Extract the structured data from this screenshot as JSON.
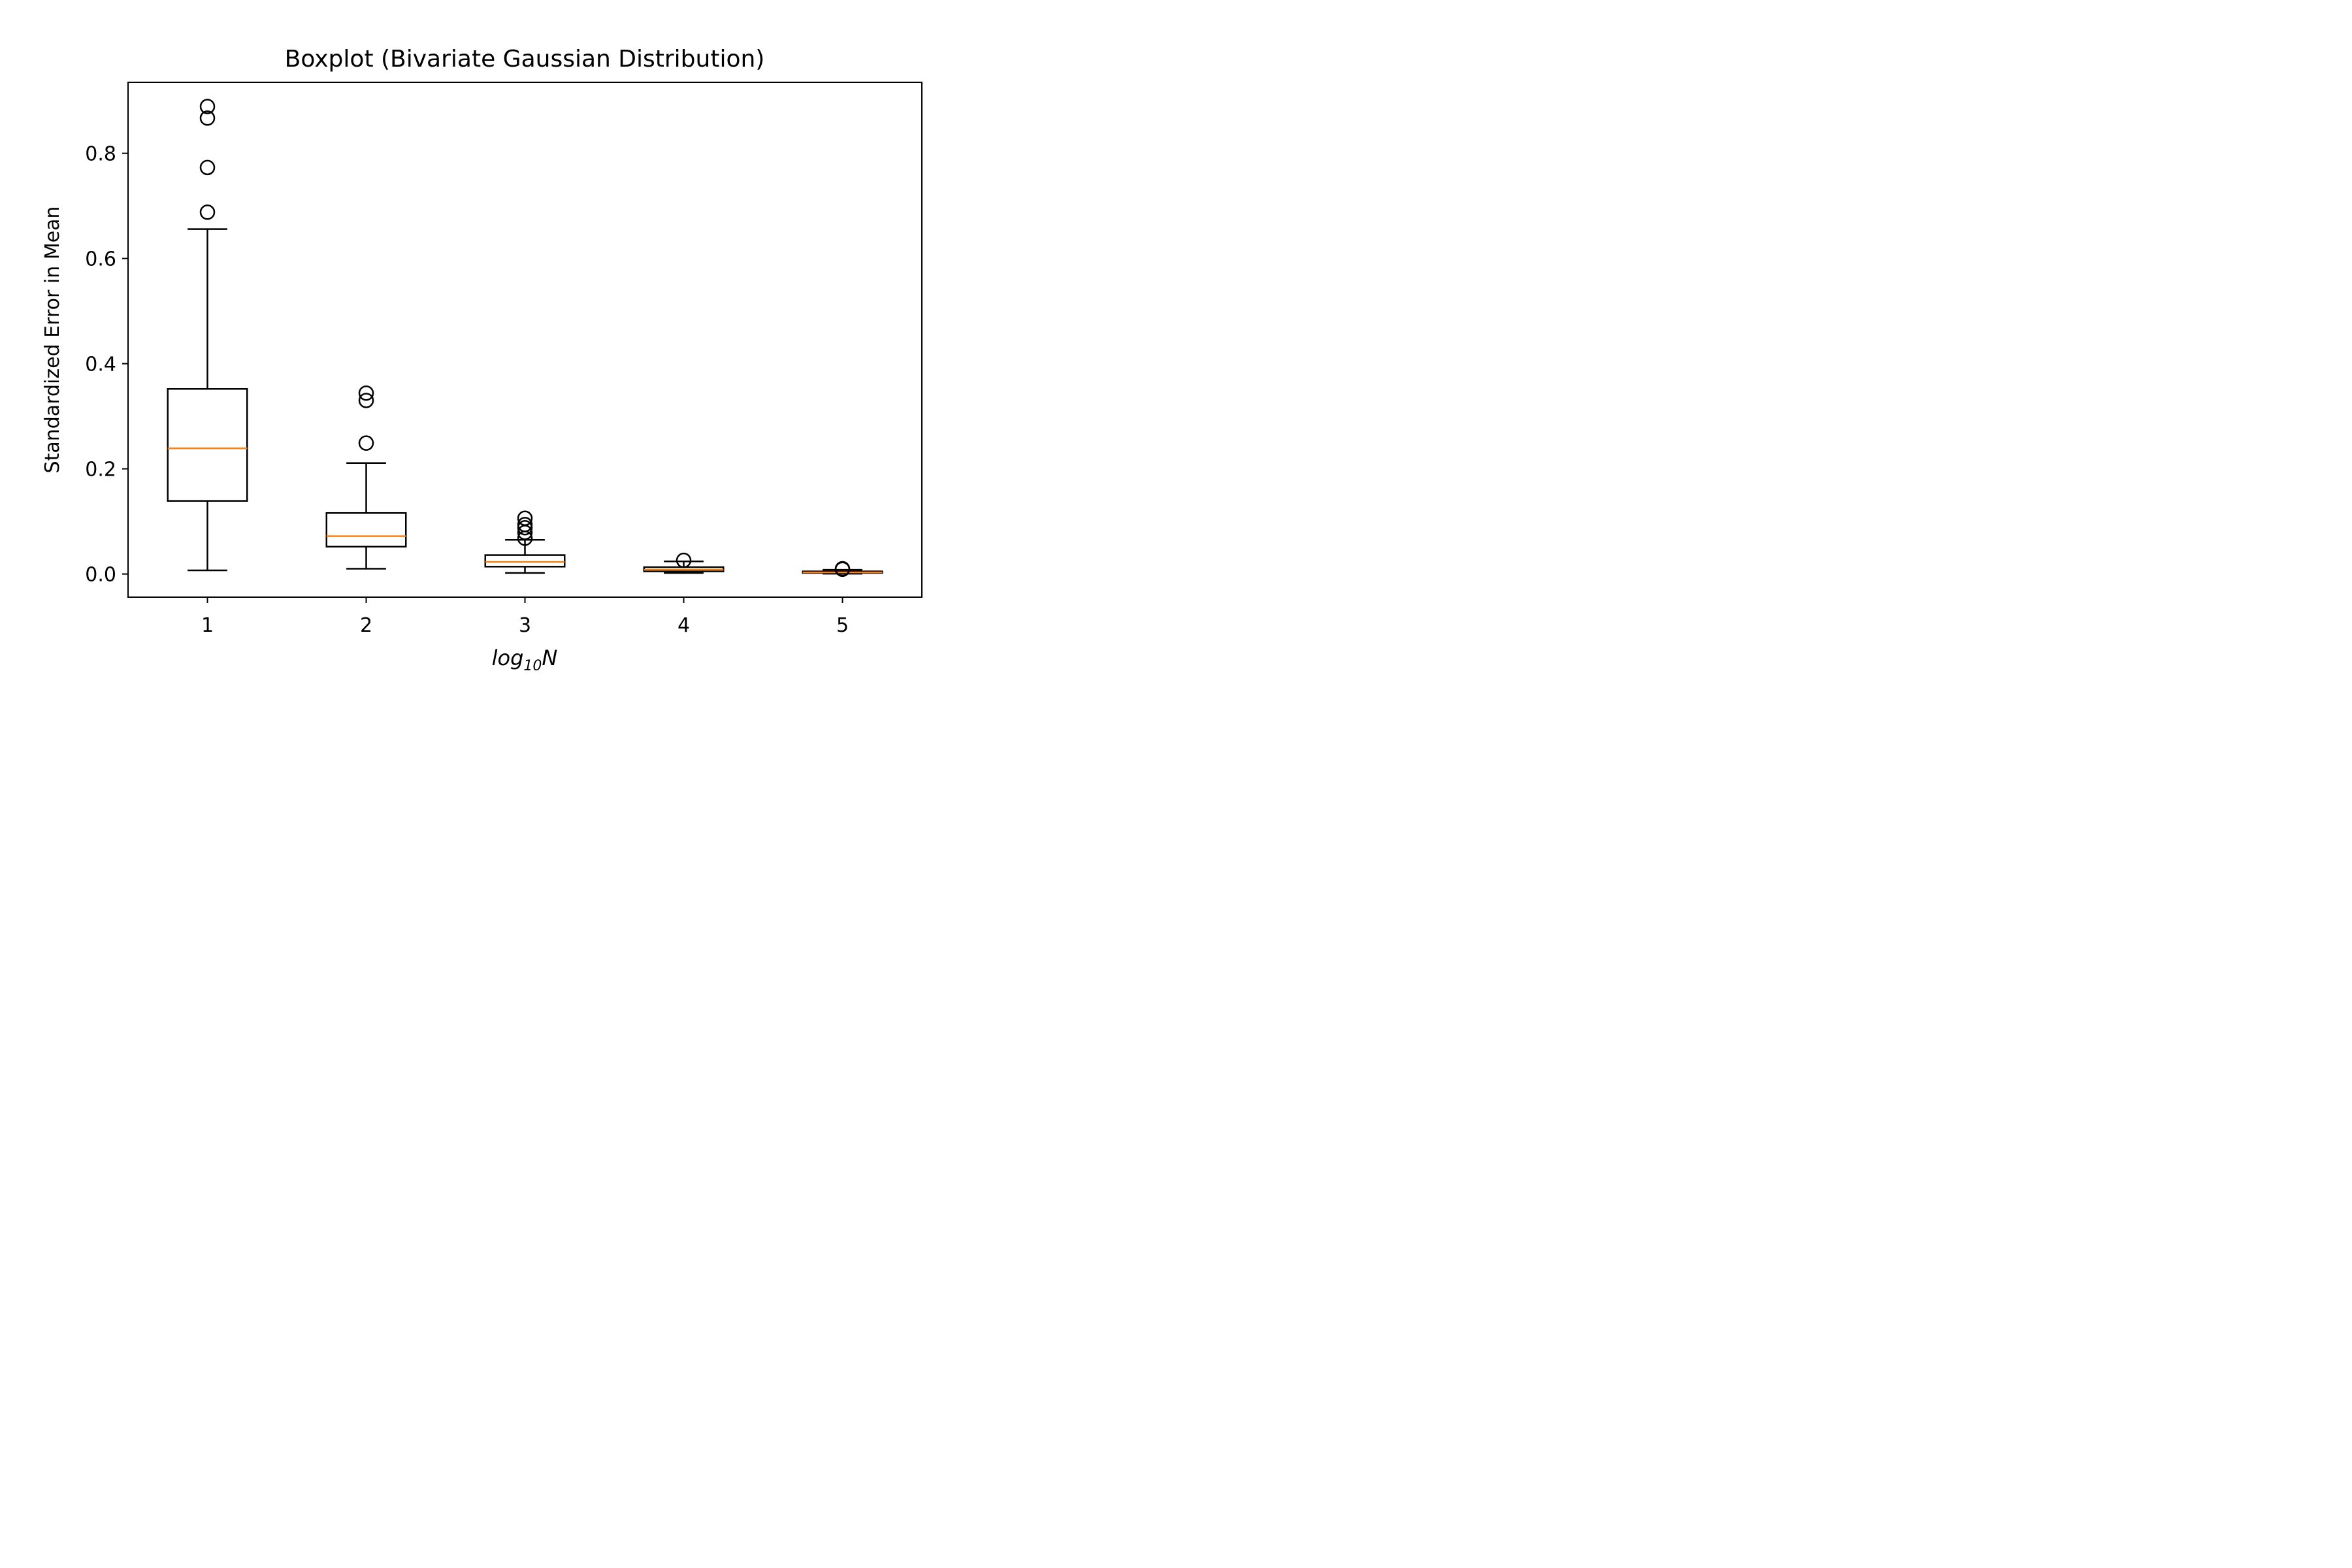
{
  "chart_data": {
    "type": "boxplot",
    "title": "Boxplot (Bivariate Gaussian Distribution)",
    "xlabel": {
      "main": "log",
      "sub": "10",
      "tail": "N"
    },
    "ylabel": "Standardized Error in Mean",
    "xlim": [
      0.5,
      5.5
    ],
    "ylim": [
      -0.044,
      0.935
    ],
    "x_ticks": [
      "1",
      "2",
      "3",
      "4",
      "5"
    ],
    "y_ticks": [
      {
        "value": 0.0,
        "label": "0.0"
      },
      {
        "value": 0.2,
        "label": "0.2"
      },
      {
        "value": 0.4,
        "label": "0.4"
      },
      {
        "value": 0.6,
        "label": "0.6"
      },
      {
        "value": 0.8,
        "label": "0.8"
      }
    ],
    "grid": false,
    "colors": {
      "box": "#000000",
      "median": "#ff7f0e",
      "flier": "#000000"
    },
    "boxes": [
      {
        "x": 1,
        "whisker_low": 0.007,
        "q1": 0.139,
        "median": 0.239,
        "q3": 0.352,
        "whisker_high": 0.656,
        "fliers": [
          0.688,
          0.773,
          0.867,
          0.889
        ]
      },
      {
        "x": 2,
        "whisker_low": 0.01,
        "q1": 0.052,
        "median": 0.072,
        "q3": 0.116,
        "whisker_high": 0.211,
        "fliers": [
          0.249,
          0.33,
          0.344
        ]
      },
      {
        "x": 3,
        "whisker_low": 0.002,
        "q1": 0.014,
        "median": 0.023,
        "q3": 0.036,
        "whisker_high": 0.065,
        "fliers": [
          0.068,
          0.079,
          0.088,
          0.094,
          0.106
        ]
      },
      {
        "x": 4,
        "whisker_low": 0.002,
        "q1": 0.005,
        "median": 0.008,
        "q3": 0.013,
        "whisker_high": 0.024,
        "fliers": [
          0.026
        ]
      },
      {
        "x": 5,
        "whisker_low": 0.0005,
        "q1": 0.002,
        "median": 0.003,
        "q3": 0.005,
        "whisker_high": 0.008,
        "fliers": [
          0.009,
          0.01
        ]
      }
    ]
  }
}
